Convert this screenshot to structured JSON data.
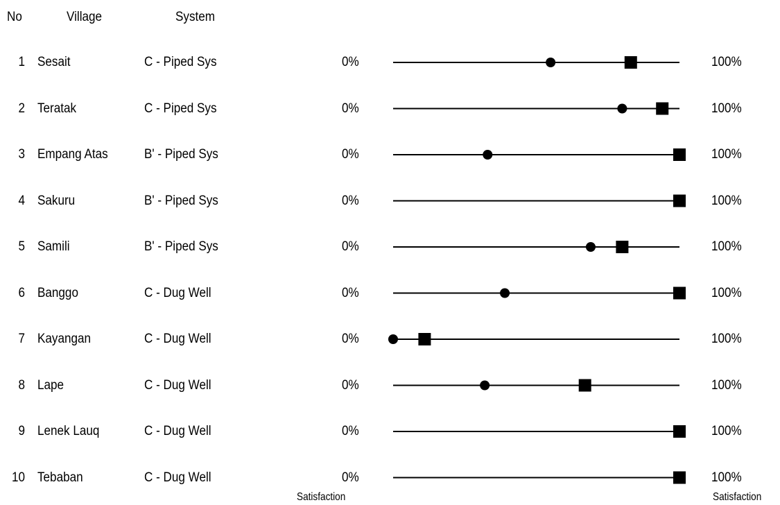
{
  "headers": {
    "no": "No",
    "village": "Village",
    "system": "System"
  },
  "scale": {
    "low_label": "0%",
    "high_label": "100%",
    "footer_left": "Satisfaction",
    "footer_right": "Satisfaction"
  },
  "rows": [
    {
      "no": "1",
      "village": "Sesait",
      "system": "C - Piped Sys"
    },
    {
      "no": "2",
      "village": "Teratak",
      "system": "C - Piped Sys"
    },
    {
      "no": "3",
      "village": "Empang Atas",
      "system": "B' - Piped Sys"
    },
    {
      "no": "4",
      "village": "Sakuru",
      "system": "B' - Piped Sys"
    },
    {
      "no": "5",
      "village": "Samili",
      "system": "B' - Piped Sys"
    },
    {
      "no": "6",
      "village": "Banggo",
      "system": "C - Dug Well"
    },
    {
      "no": "7",
      "village": "Kayangan",
      "system": "C - Dug Well"
    },
    {
      "no": "8",
      "village": "Lape",
      "system": "C - Dug Well"
    },
    {
      "no": "9",
      "village": "Lenek Lauq",
      "system": "C - Dug Well"
    },
    {
      "no": "10",
      "village": "Tebaban",
      "system": "C - Dug Well"
    }
  ],
  "chart_data": {
    "type": "scatter",
    "xlim": [
      0,
      100
    ],
    "x_unit": "% satisfaction",
    "grid": false,
    "categories": [
      "Sesait",
      "Teratak",
      "Empang Atas",
      "Sakuru",
      "Samili",
      "Banggo",
      "Kayangan",
      "Lape",
      "Lenek Lauq",
      "Tebaban"
    ],
    "series": [
      {
        "marker": "circle",
        "values": [
          55,
          80,
          33,
          null,
          69,
          39,
          0,
          32,
          null,
          null
        ]
      },
      {
        "marker": "square",
        "values": [
          83,
          94,
          100,
          100,
          80,
          100,
          11,
          67,
          100,
          100
        ]
      }
    ],
    "colors": {
      "marker": "#000000",
      "line": "#000000"
    }
  }
}
